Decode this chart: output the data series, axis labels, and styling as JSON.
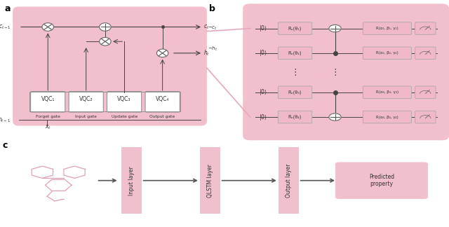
{
  "pink_bg": "#f2bfcc",
  "pink_fill": "#f0b8c8",
  "pink_meas": "#f0b8c8",
  "line_color": "#444444",
  "dark_text": "#333333",
  "vqc_labels": [
    "VQC₁",
    "VQC₂",
    "VQC₃",
    "VQC₄"
  ],
  "gate_labels": [
    "Forget gate",
    "Input gate",
    "Update gate",
    "Output gate"
  ],
  "rx_labels": [
    "Rₓ(θ₁)",
    "Rₓ(θ₂)",
    "Rₓ(θ₃)",
    "Rₓ(θ₄)"
  ],
  "r_labels": [
    "R(α₁, β₁, γ₁)",
    "R(α₂, β₂, γ₂)",
    "R(α₃, β₃, γ₃)",
    "R(α₄, β₄, γ₄)"
  ],
  "c_layers": [
    "Input layer",
    "QLSTM layer",
    "Output layer"
  ],
  "predicted": "Predicted\nproperty",
  "connector_color": "#e8a8bc"
}
